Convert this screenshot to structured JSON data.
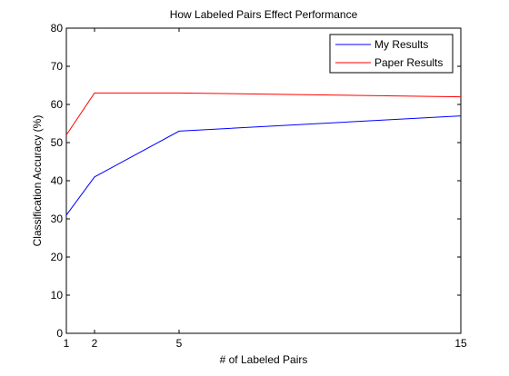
{
  "chart_data": {
    "type": "line",
    "title": "How Labeled Pairs Effect Performance",
    "xlabel": "# of Labeled Pairs",
    "ylabel": "Classification Accuracy (%)",
    "xlim": [
      1,
      15
    ],
    "ylim": [
      0,
      80
    ],
    "xticks": [
      1,
      2,
      5,
      15
    ],
    "yticks": [
      0,
      10,
      20,
      30,
      40,
      50,
      60,
      70,
      80
    ],
    "grid": false,
    "legend_position": "top-right",
    "series": [
      {
        "name": "My Results",
        "color": "#0000ff",
        "x": [
          1,
          2,
          5,
          15
        ],
        "y": [
          31,
          41,
          53,
          57
        ]
      },
      {
        "name": "Paper Results",
        "color": "#ff0000",
        "x": [
          1,
          2,
          5,
          15
        ],
        "y": [
          52,
          63,
          63,
          62
        ]
      }
    ]
  }
}
